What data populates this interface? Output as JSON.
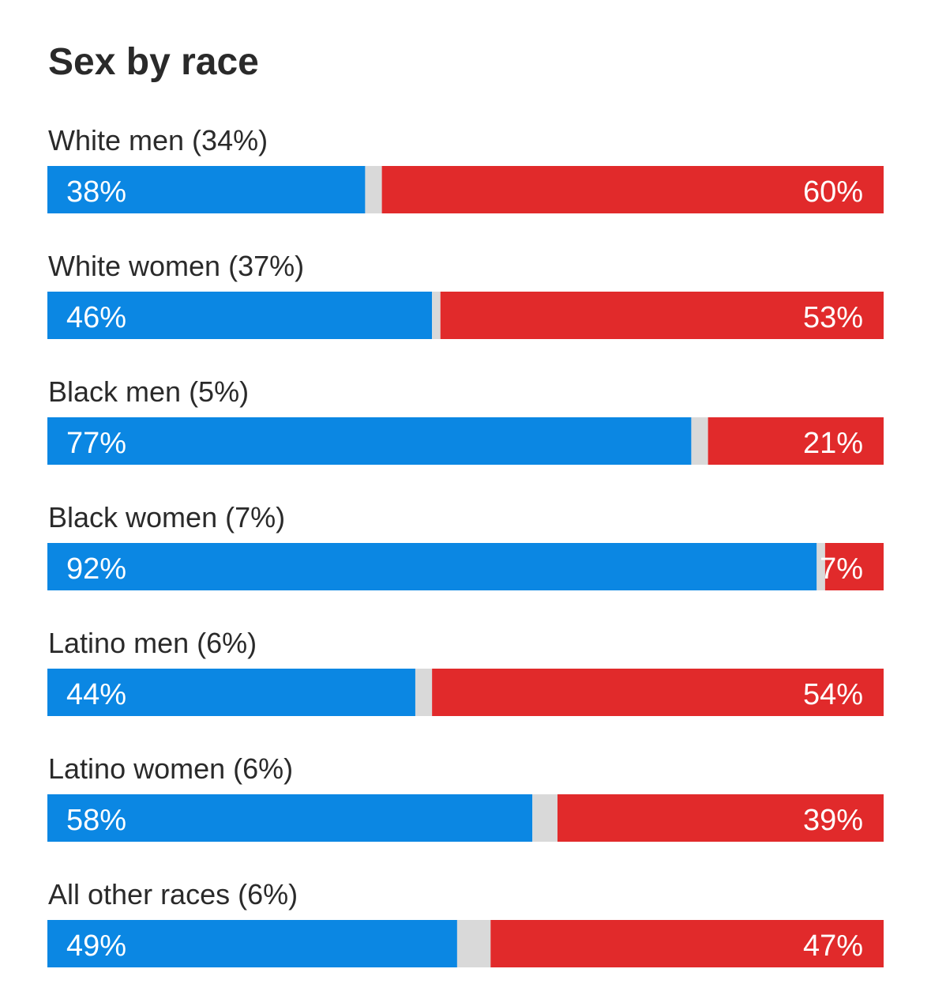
{
  "chart_data": {
    "type": "bar",
    "stacked": true,
    "orientation": "horizontal",
    "title": "Sex by race",
    "categories": [
      "White men (34%)",
      "White women (37%)",
      "Black men (5%)",
      "Black women (7%)",
      "Latino men (6%)",
      "Latino women (6%)",
      "All other races (6%)"
    ],
    "series": [
      {
        "values": [
          38,
          46,
          77,
          92,
          44,
          58,
          49
        ],
        "color": "#0b87e3"
      },
      {
        "values": [
          2,
          1,
          2,
          1,
          2,
          3,
          4
        ],
        "color": "#d9d9d9"
      },
      {
        "values": [
          60,
          53,
          21,
          7,
          54,
          39,
          47
        ],
        "color": "#e12a2b"
      }
    ],
    "value_labels": {
      "left": [
        "38%",
        "46%",
        "77%",
        "92%",
        "44%",
        "58%",
        "49%"
      ],
      "right": [
        "60%",
        "53%",
        "21%",
        "7%",
        "54%",
        "39%",
        "47%"
      ]
    },
    "xlim": [
      0,
      100
    ],
    "grid": false,
    "legend": "none"
  }
}
